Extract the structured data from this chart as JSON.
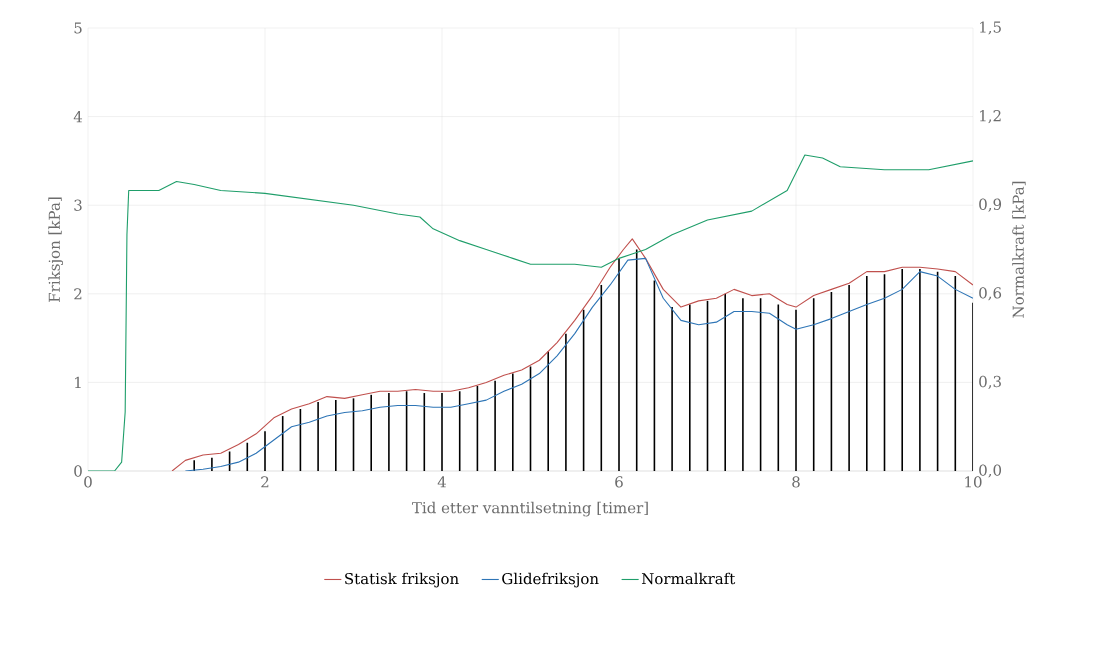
{
  "chart_data": {
    "type": "line",
    "xlabel": "Tid etter vanntilsetning  [timer]",
    "ylabel": "Friksjon  [kPa]",
    "y2label": "Normalkraft  [kPa]",
    "xlim": [
      0,
      10
    ],
    "xticks": [
      0,
      2,
      4,
      6,
      8,
      10
    ],
    "ylim": [
      0,
      5
    ],
    "yticks": [
      0,
      1,
      2,
      3,
      4,
      5
    ],
    "y2lim": [
      0,
      1.5
    ],
    "y2ticks": [
      {
        "value": 0,
        "label": "0,0"
      },
      {
        "value": 0.3,
        "label": "0,3"
      },
      {
        "value": 0.6,
        "label": "0,6"
      },
      {
        "value": 0.9,
        "label": "0,9"
      },
      {
        "value": 1.2,
        "label": "1,2"
      },
      {
        "value": 1.5,
        "label": "1,5"
      }
    ],
    "grid": true,
    "legend": "bottom",
    "marker": "none",
    "series": [
      {
        "type": "bar",
        "color": "#000000",
        "x": [
          1.2,
          1.4,
          1.6,
          1.8,
          2.0,
          2.2,
          2.4,
          2.6,
          2.8,
          3.0,
          3.2,
          3.4,
          3.6,
          3.8,
          4.0,
          4.2,
          4.4,
          4.6,
          4.8,
          5.0,
          5.2,
          5.4,
          5.6,
          5.8,
          6.0,
          6.2,
          6.4,
          6.6,
          6.8,
          7.0,
          7.2,
          7.4,
          7.6,
          7.8,
          8.0,
          8.2,
          8.4,
          8.6,
          8.8,
          9.0,
          9.2,
          9.4,
          9.6,
          9.8,
          10.0
        ],
        "values": [
          0.12,
          0.15,
          0.22,
          0.32,
          0.45,
          0.62,
          0.7,
          0.78,
          0.8,
          0.82,
          0.86,
          0.88,
          0.9,
          0.88,
          0.88,
          0.9,
          0.96,
          1.02,
          1.1,
          1.18,
          1.35,
          1.55,
          1.82,
          2.1,
          2.4,
          2.5,
          2.15,
          1.85,
          1.88,
          1.92,
          2.0,
          1.95,
          1.95,
          1.88,
          1.82,
          1.95,
          2.02,
          2.1,
          2.2,
          2.22,
          2.28,
          2.28,
          2.25,
          2.2,
          1.9
        ]
      },
      {
        "name": "Statisk friksjon",
        "color": "#c0504d",
        "x": [
          0.95,
          1.1,
          1.3,
          1.5,
          1.7,
          1.9,
          2.1,
          2.3,
          2.5,
          2.7,
          2.9,
          3.1,
          3.3,
          3.5,
          3.7,
          3.9,
          4.1,
          4.3,
          4.5,
          4.7,
          4.9,
          5.1,
          5.3,
          5.5,
          5.7,
          5.9,
          6.05,
          6.15,
          6.3,
          6.5,
          6.7,
          6.9,
          7.1,
          7.3,
          7.5,
          7.7,
          7.9,
          8.0,
          8.2,
          8.4,
          8.6,
          8.8,
          9.0,
          9.2,
          9.4,
          9.6,
          9.8,
          10.0
        ],
        "values": [
          0,
          0.12,
          0.18,
          0.2,
          0.3,
          0.42,
          0.6,
          0.7,
          0.76,
          0.84,
          0.82,
          0.86,
          0.9,
          0.9,
          0.92,
          0.9,
          0.9,
          0.94,
          1.0,
          1.08,
          1.14,
          1.25,
          1.45,
          1.7,
          1.98,
          2.3,
          2.5,
          2.62,
          2.4,
          2.05,
          1.85,
          1.92,
          1.95,
          2.05,
          1.98,
          2.0,
          1.88,
          1.85,
          1.98,
          2.05,
          2.12,
          2.25,
          2.25,
          2.3,
          2.3,
          2.28,
          2.25,
          2.1
        ]
      },
      {
        "name": "Glidefriksjon",
        "color": "#2e75b6",
        "x": [
          1.1,
          1.3,
          1.5,
          1.7,
          1.9,
          2.1,
          2.3,
          2.5,
          2.7,
          2.9,
          3.1,
          3.3,
          3.5,
          3.7,
          3.9,
          4.1,
          4.3,
          4.5,
          4.7,
          4.9,
          5.1,
          5.3,
          5.5,
          5.7,
          5.9,
          6.1,
          6.3,
          6.5,
          6.7,
          6.9,
          7.1,
          7.3,
          7.5,
          7.7,
          7.9,
          8.0,
          8.2,
          8.4,
          8.6,
          8.8,
          9.0,
          9.2,
          9.4,
          9.6,
          9.8,
          10.0
        ],
        "values": [
          0,
          0.02,
          0.05,
          0.1,
          0.2,
          0.35,
          0.5,
          0.55,
          0.62,
          0.66,
          0.68,
          0.72,
          0.74,
          0.74,
          0.72,
          0.72,
          0.76,
          0.8,
          0.9,
          0.98,
          1.1,
          1.3,
          1.55,
          1.85,
          2.1,
          2.38,
          2.4,
          1.95,
          1.7,
          1.65,
          1.68,
          1.8,
          1.8,
          1.78,
          1.65,
          1.6,
          1.65,
          1.72,
          1.8,
          1.88,
          1.95,
          2.05,
          2.25,
          2.2,
          2.05,
          1.95
        ]
      },
      {
        "name": "Normalkraft",
        "color": "#1f9e6a",
        "axis": "y2",
        "x": [
          0,
          0.3,
          0.38,
          0.42,
          0.44,
          0.46,
          0.8,
          1.0,
          1.2,
          1.5,
          2.0,
          2.5,
          3.0,
          3.5,
          3.75,
          3.9,
          4.2,
          4.5,
          4.8,
          5.0,
          5.5,
          5.8,
          6.0,
          6.3,
          6.6,
          7.0,
          7.5,
          7.9,
          8.1,
          8.3,
          8.5,
          9.0,
          9.5,
          10.0
        ],
        "values": [
          0,
          0,
          0.03,
          0.2,
          0.8,
          0.95,
          0.95,
          0.98,
          0.97,
          0.95,
          0.94,
          0.92,
          0.9,
          0.87,
          0.86,
          0.82,
          0.78,
          0.75,
          0.72,
          0.7,
          0.7,
          0.69,
          0.72,
          0.75,
          0.8,
          0.85,
          0.88,
          0.95,
          1.07,
          1.06,
          1.03,
          1.02,
          1.02,
          1.05
        ]
      }
    ]
  }
}
